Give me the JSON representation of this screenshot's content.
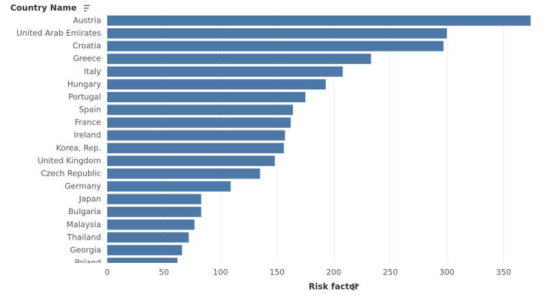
{
  "chart_data": {
    "type": "bar",
    "orientation": "horizontal",
    "y_label": "Country Name",
    "x_label": "Risk factor",
    "categories": [
      "Austria",
      "United Arab Emirates",
      "Croatia",
      "Greece",
      "Italy",
      "Hungary",
      "Portugal",
      "Spain",
      "France",
      "Ireland",
      "Korea, Rep.",
      "United Kingdom",
      "Czech Republic",
      "Germany",
      "Japan",
      "Bulgaria",
      "Malaysia",
      "Thailand",
      "Georgia",
      "Poland"
    ],
    "values": [
      374,
      300,
      297,
      233,
      208,
      193,
      175,
      164,
      162,
      157,
      156,
      148,
      135,
      109,
      83,
      83,
      77,
      72,
      66,
      62
    ],
    "color": "#4e79a7",
    "xlim": [
      0,
      385
    ],
    "xticks": [
      0,
      50,
      100,
      150,
      200,
      250,
      300,
      350
    ],
    "grid": true
  }
}
